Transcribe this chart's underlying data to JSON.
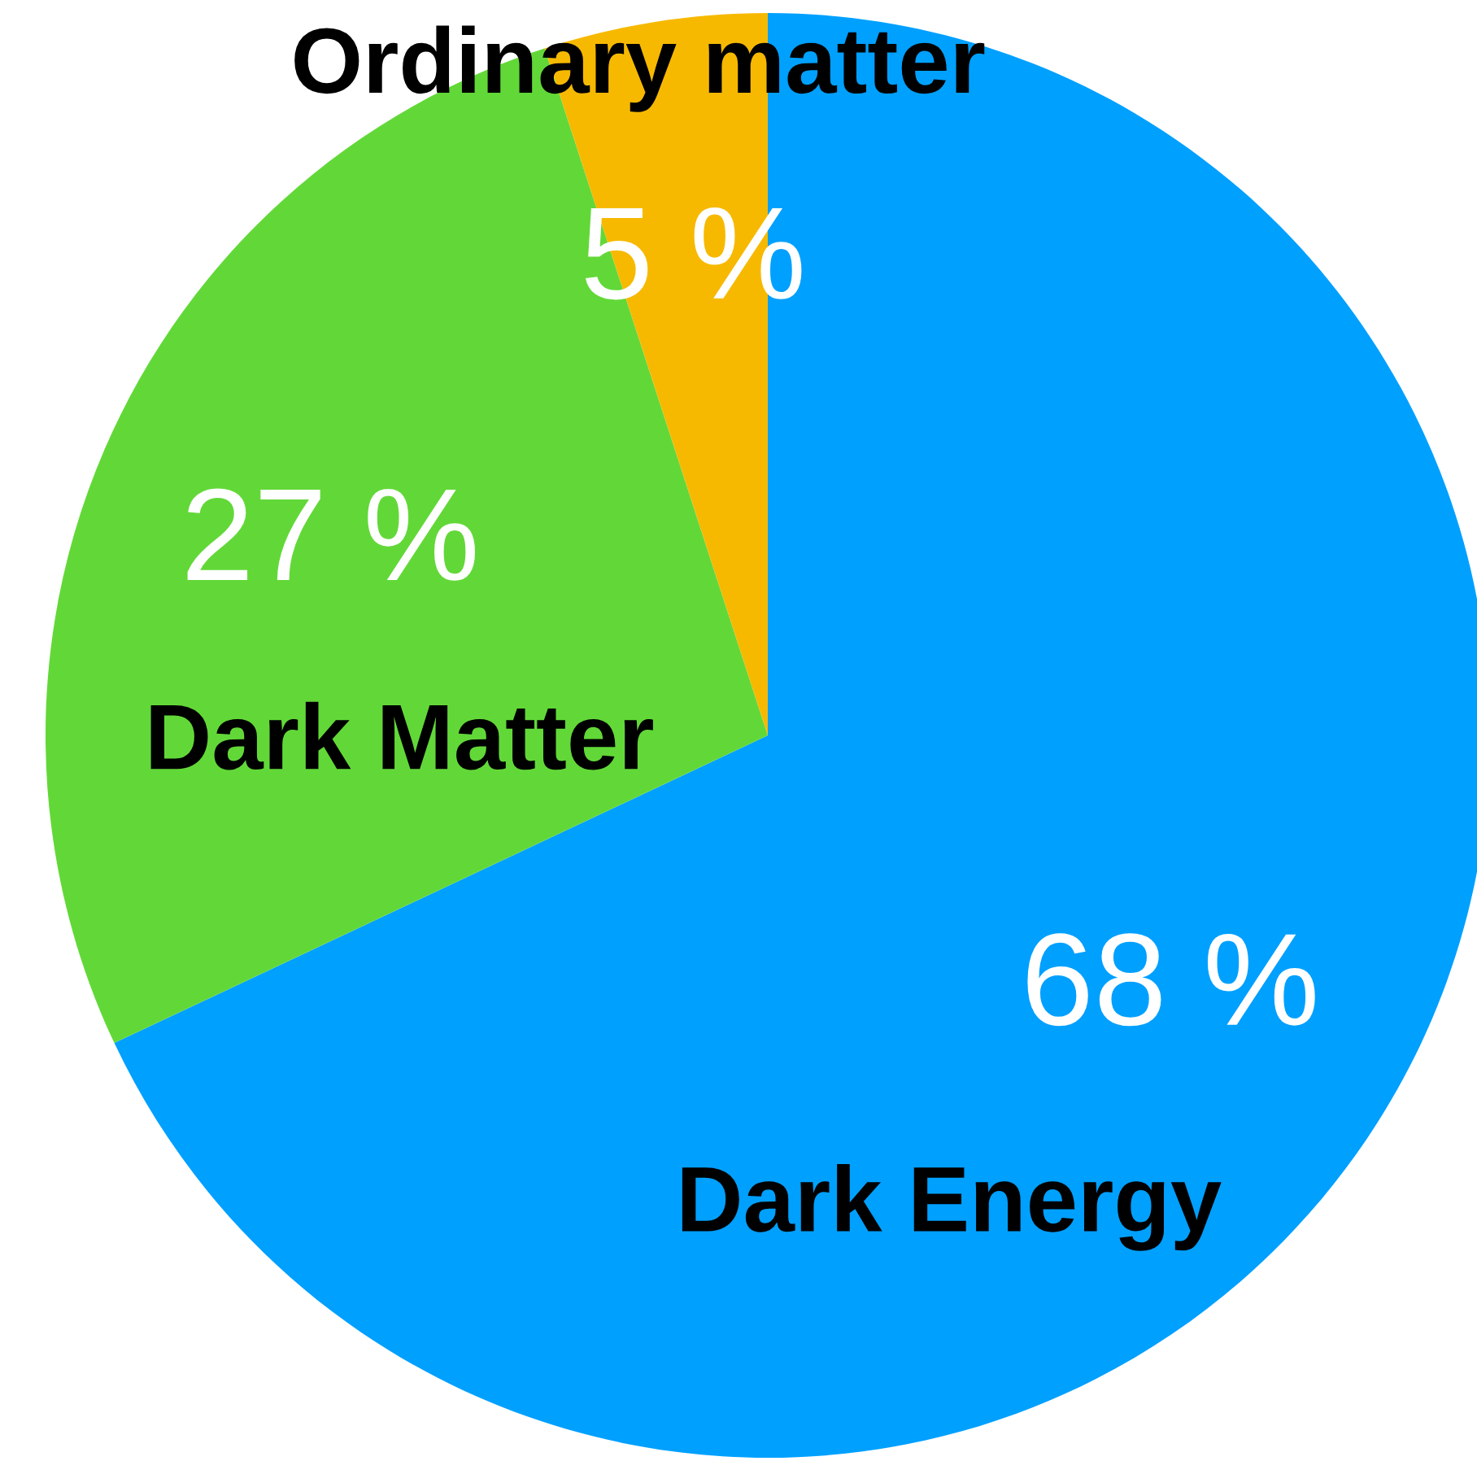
{
  "chart_data": {
    "type": "pie",
    "categories": [
      "Dark Energy",
      "Dark Matter",
      "Ordinary matter"
    ],
    "values": [
      68,
      27,
      5
    ],
    "colors": [
      "#00a0ff",
      "#62d838",
      "#f7b900"
    ],
    "value_labels": [
      "68 %",
      "27 %",
      "5 %"
    ]
  }
}
